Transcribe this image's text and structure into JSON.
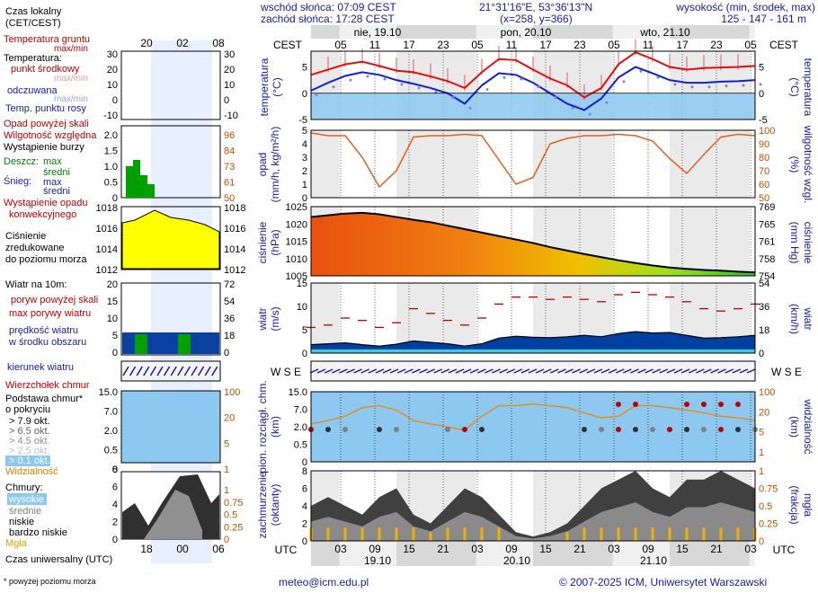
{
  "header": {
    "sunrise": "wschód słońca: 07:09 CEST",
    "sunset": "zachód słońca: 17:28 CEST",
    "coords": "21°31'16\"E, 53°36'13\"N",
    "grid": "(x=258,  y=366)",
    "height_label": "wysokość (min, środek, max)",
    "height_values": "125 - 147 - 161 m",
    "tz_top": "CEST",
    "tz_bottom": "UTC"
  },
  "days": [
    "nie, 19.10",
    "pon, 20.10",
    "wto, 21.10"
  ],
  "days_bottom": [
    "19.10",
    "20.10",
    "21.10"
  ],
  "hours_top": [
    "05",
    "11",
    "17",
    "23",
    "05",
    "11",
    "17",
    "23",
    "05",
    "11",
    "17",
    "23",
    "05"
  ],
  "hours_bottom": [
    "03",
    "09",
    "15",
    "21",
    "03",
    "09",
    "15",
    "21",
    "03",
    "09",
    "15",
    "21",
    "03"
  ],
  "legend": {
    "local_time": "Czas lokalny",
    "local_tz": "(CET/CEST)",
    "local_hours": [
      "20",
      "02",
      "08"
    ],
    "utc_hours": [
      "18",
      "00",
      "06"
    ],
    "utc_label": "Czas uniwersalny (UTC)",
    "footnote": "* powyżej poziomu morza",
    "temp": {
      "ground": "Temperatura gruntu",
      "ground2": "max/min",
      "temperature": "Temperatura:",
      "mid": "punkt środkowy",
      "maxmin": "max/min",
      "felt": "odczuwana",
      "maxmin2": "max/min",
      "dew": "Temp. punktu rosy",
      "ticks": [
        "30",
        "20",
        "10",
        "0",
        "-10"
      ]
    },
    "precip": {
      "above": "Opad powyżej skali",
      "humidity": "Wilgotność względna",
      "storm": "Wystąpienie burzy",
      "rain": "Deszcz:",
      "rain_max": "max",
      "rain_mid": "średni",
      "snow": "Śnieg:",
      "snow_max": "max",
      "snow_mid": "średni",
      "conv1": "Wystąpienie opadu",
      "conv2": "konwekcyjnego",
      "ticks": [
        "2.0",
        "1.5",
        "1.0",
        "0.5",
        "0"
      ],
      "rticks": [
        "96",
        "84",
        "73",
        "61",
        "50"
      ]
    },
    "pressure": {
      "l1": "Ciśnienie",
      "l2": "zredukowane",
      "l3": "do poziomu morza",
      "ticks": [
        "1018",
        "1016",
        "1014",
        "1012"
      ]
    },
    "wind": {
      "title": "Wiatr na 10m:",
      "gust_above": "poryw powyżej skali",
      "gust_max": "max porywy wiatru",
      "mean1": "prędkość wiatru",
      "mean2": "w środku obszaru",
      "ticks": [
        "20",
        "15",
        "10",
        "5",
        "0"
      ],
      "rticks": [
        "72",
        "54",
        "36",
        "18",
        "0"
      ]
    },
    "dir": "kierunek wiatru",
    "cloud": {
      "top": "Wierzchołek chmur",
      "base": "Podstawa chmur*",
      "cover": "o pokryciu",
      "o79": "> 7.9 okt.",
      "o65": "> 6.5 okt.",
      "o45": "> 4.5 okt.",
      "o25": "> 2.5 okt.",
      "o01": "> 0.1 okt.",
      "vis": "Widzialność",
      "ticks": [
        "15.0",
        "7.0",
        "2.0",
        "0.5",
        "0"
      ],
      "rticks": [
        "100",
        "20",
        "5",
        "1"
      ]
    },
    "clouds": {
      "title": "Chmury:",
      "high": "wysokie",
      "mid": "średnie",
      "low": "niskie",
      "vlow": "bardzo niskie",
      "fog": "Mgła",
      "ticks": [
        "8",
        "6",
        "4",
        "2",
        "0"
      ],
      "rticks": [
        "1",
        "0.75",
        "0.5",
        "0.25",
        "0"
      ]
    }
  },
  "panels": {
    "temp": {
      "ylabel": "temperatura\n(°C)",
      "ticks": [
        "5",
        "0",
        "-5"
      ]
    },
    "precip": {
      "ylabel1": "opad",
      "ylabel2": "(mm/h, kg/m²/h)",
      "ticks": [
        "5",
        "4",
        "3",
        "2",
        "1",
        "0"
      ],
      "ylabel_r": "wilgotność wzgl.",
      "ylabel_r2": "(%)",
      "rticks": [
        "100",
        "90",
        "80",
        "70",
        "60",
        "50"
      ]
    },
    "pressure": {
      "ylabel1": "ciśnienie",
      "ylabel2": "(hPa)",
      "ticks": [
        "1025",
        "1020",
        "1015",
        "1010",
        "1005"
      ],
      "ylabel_r": "ciśnienie",
      "ylabel_r2": "(mm Hg)",
      "rticks": [
        "769",
        "765",
        "761",
        "758",
        "754"
      ]
    },
    "wind": {
      "ylabel1": "wiatr",
      "ylabel2": "(m/s)",
      "ticks": [
        "15",
        "10",
        "5",
        "0"
      ],
      "ylabel_r": "wiatr",
      "ylabel_r2": "(km/h)",
      "rticks": [
        "54",
        "36",
        "18",
        "0"
      ]
    },
    "cloud": {
      "ylabel1": "pion. rozciągł. chm.",
      "ylabel2": "(km)",
      "ticks": [
        "15.0",
        "7.0",
        "2.0",
        "0.5",
        "0"
      ],
      "ylabel_r": "widzialność",
      "ylabel_r2": "(km)",
      "rticks": [
        "100",
        "20",
        "5",
        "1"
      ]
    },
    "cover": {
      "ylabel1": "zachmurzenie",
      "ylabel2": "(oktanty)",
      "ticks": [
        "8",
        "6",
        "4",
        "2",
        "0"
      ],
      "ylabel_r": "mgła",
      "ylabel_r2": "(frakcja)",
      "rticks": [
        "1",
        "0.75",
        "0.5",
        "0.25",
        "0"
      ]
    }
  },
  "footer": {
    "email": "meteo@icm.edu.pl",
    "copyright": "© 2007-2025 ICM, Uniwersytet Warszawski"
  },
  "chart_data": {
    "type": "line",
    "x_hours_utc": [
      0,
      3,
      6,
      9,
      12,
      15,
      18,
      21,
      24,
      27,
      30,
      33,
      36,
      39,
      42,
      45,
      48,
      51,
      54,
      57,
      60,
      63,
      66,
      69,
      72,
      75,
      78
    ],
    "temperature_mid": [
      3.5,
      4.5,
      5.5,
      6.0,
      5.2,
      4.3,
      4.0,
      3.2,
      2.3,
      1.0,
      4.0,
      6.5,
      6.3,
      4.5,
      2.8,
      1.5,
      -0.8,
      1.0,
      5.5,
      7.8,
      6.5,
      5.0,
      4.5,
      4.8,
      4.9,
      5.0,
      5.2
    ],
    "temperature_felt": [
      0.5,
      2.0,
      3.3,
      4.0,
      3.5,
      2.5,
      1.8,
      1.0,
      0.0,
      -2.0,
      1.5,
      3.8,
      3.5,
      2.0,
      0.0,
      -2.0,
      -3.2,
      -1.0,
      3.0,
      5.0,
      3.8,
      2.5,
      2.0,
      2.0,
      2.2,
      2.3,
      2.5
    ],
    "humidity_pct": [
      98,
      96,
      96,
      80,
      58,
      70,
      95,
      96,
      96,
      97,
      96,
      78,
      60,
      65,
      90,
      94,
      96,
      96,
      97,
      96,
      92,
      79,
      68,
      82,
      95,
      97,
      96
    ],
    "pressure_hpa": [
      1022,
      1022.5,
      1023,
      1023.2,
      1022.8,
      1022,
      1021.2,
      1020.5,
      1019.5,
      1018.5,
      1017.5,
      1016.5,
      1015.5,
      1014.5,
      1013.3,
      1012.3,
      1011.3,
      1010.4,
      1009.5,
      1008.7,
      1008,
      1007.4,
      1007,
      1006.7,
      1006.5,
      1006.2,
      1006
    ],
    "wind_ms": [
      1.8,
      2.0,
      2.2,
      1.8,
      1.5,
      1.9,
      2.6,
      2.3,
      2.0,
      1.5,
      2.0,
      3.2,
      3.6,
      3.4,
      3.3,
      3.5,
      3.8,
      3.5,
      4.2,
      4.6,
      4.3,
      4.4,
      3.8,
      3.2,
      3.3,
      3.5,
      3.8
    ],
    "gust_ms": [
      5.5,
      6.0,
      7.5,
      7.0,
      5.5,
      6.5,
      9.5,
      8.5,
      7.0,
      6.0,
      7.5,
      10.5,
      12.0,
      12.0,
      11.5,
      12.0,
      11.5,
      11.0,
      12.5,
      13.0,
      12.5,
      12.0,
      11.0,
      9.5,
      9.0,
      9.5,
      10.5
    ],
    "cloud_octants": [
      4,
      5,
      4,
      3,
      5,
      6,
      3,
      2,
      4,
      6,
      5,
      3,
      1,
      0.5,
      1,
      2,
      4,
      6,
      7,
      8,
      6,
      5,
      7,
      7,
      8,
      7,
      6
    ],
    "visibility_km": [
      12,
      15,
      20,
      35,
      40,
      30,
      15,
      12,
      10,
      8,
      20,
      40,
      40,
      45,
      40,
      35,
      25,
      18,
      20,
      40,
      40,
      35,
      30,
      25,
      20,
      18,
      15
    ],
    "xlabel": "UTC",
    "ylim_temp": [
      -5,
      8
    ],
    "ylim_pressure": [
      1005,
      1025
    ],
    "ylim_wind": [
      0,
      15
    ]
  },
  "colors": {
    "temp_mid": "#e01010",
    "temp_felt": "#1020d0",
    "humidity": "#e06020",
    "pressure_line": "#000000",
    "wind_fill": "#0040a0",
    "gust": "#c00000",
    "visibility": "#e09020",
    "night": "#d8d8d8",
    "sky": "#8cc8f0"
  }
}
